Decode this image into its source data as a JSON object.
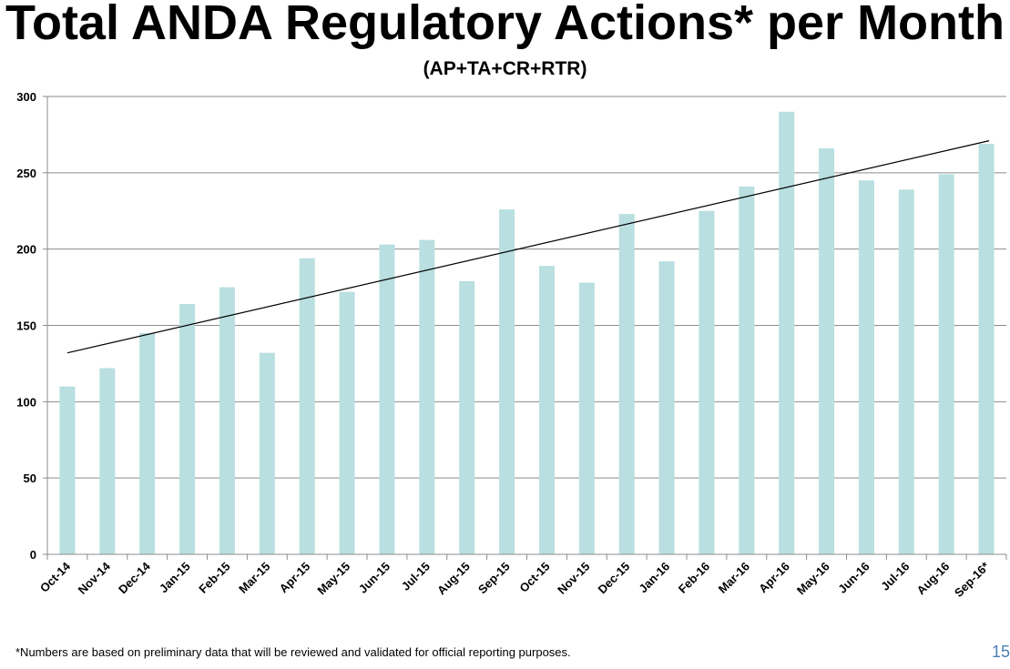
{
  "title": "Total ANDA Regulatory Actions* per Month",
  "subtitle": "(AP+TA+CR+RTR)",
  "footnote": "*Numbers are based on  preliminary data that will be reviewed and validated for official reporting purposes.",
  "page_number": "15",
  "colors": {
    "bar": "#b9dfe0",
    "grid": "#8c8c8c",
    "trendline": "#000000"
  },
  "chart_data": {
    "type": "bar",
    "title": "Total ANDA Regulatory Actions* per Month",
    "subtitle": "(AP+TA+CR+RTR)",
    "xlabel": "",
    "ylabel": "",
    "ylim": [
      0,
      300
    ],
    "yticks": [
      0,
      50,
      100,
      150,
      200,
      250,
      300
    ],
    "grid": true,
    "legend": "none",
    "categories": [
      "Oct-14",
      "Nov-14",
      "Dec-14",
      "Jan-15",
      "Feb-15",
      "Mar-15",
      "Apr-15",
      "May-15",
      "Jun-15",
      "Jul-15",
      "Aug-15",
      "Sep-15",
      "Oct-15",
      "Nov-15",
      "Dec-15",
      "Jan-16",
      "Feb-16",
      "Mar-16",
      "Apr-16",
      "May-16",
      "Jun-16",
      "Jul-16",
      "Aug-16",
      "Sep-16*"
    ],
    "values": [
      110,
      122,
      145,
      164,
      175,
      132,
      194,
      172,
      203,
      206,
      179,
      226,
      189,
      178,
      223,
      192,
      225,
      241,
      290,
      266,
      245,
      239,
      249,
      269
    ],
    "trendline": {
      "type": "linear",
      "start_value": 132,
      "end_value": 271
    }
  }
}
